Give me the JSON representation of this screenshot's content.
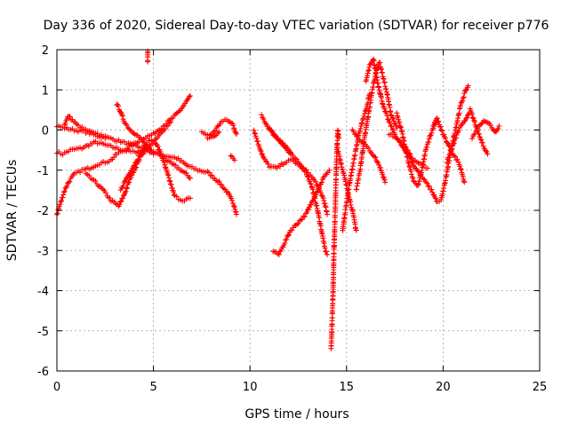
{
  "chart_data": {
    "type": "scatter",
    "title": "Day 336 of 2020, Sidereal Day-to-day VTEC variation (SDTVAR) for receiver p776",
    "xlabel": "GPS time / hours",
    "ylabel": "SDTVAR / TECUs",
    "xlim": [
      0,
      25
    ],
    "ylim": [
      -6,
      2
    ],
    "xticks": [
      0,
      5,
      10,
      15,
      20,
      25
    ],
    "yticks": [
      -6,
      -5,
      -4,
      -3,
      -2,
      -1,
      0,
      1,
      2
    ],
    "grid": true,
    "marker": "+",
    "series": [
      {
        "name": "SDTVAR",
        "color": "#ff0000",
        "tracks": [
          [
            [
              0.0,
              -0.55
            ],
            [
              0.3,
              -0.6
            ],
            [
              0.7,
              -0.5
            ],
            [
              1.3,
              -0.45
            ],
            [
              2.0,
              -0.3
            ],
            [
              2.7,
              -0.4
            ],
            [
              3.4,
              -0.5
            ],
            [
              4.0,
              -0.55
            ],
            [
              4.6,
              -0.5
            ],
            [
              5.2,
              -0.6
            ],
            [
              5.7,
              -0.65
            ],
            [
              6.2,
              -0.7
            ],
            [
              6.8,
              -0.9
            ],
            [
              7.3,
              -1.0
            ],
            [
              7.8,
              -1.05
            ],
            [
              8.4,
              -1.3
            ],
            [
              8.9,
              -1.6
            ],
            [
              9.2,
              -1.9
            ],
            [
              9.3,
              -2.1
            ]
          ],
          [
            [
              0.0,
              0.1
            ],
            [
              0.4,
              0.05
            ],
            [
              0.9,
              0.0
            ],
            [
              1.5,
              -0.05
            ],
            [
              2.1,
              -0.15
            ],
            [
              2.7,
              -0.2
            ],
            [
              3.4,
              -0.3
            ],
            [
              4.1,
              -0.4
            ],
            [
              4.8,
              -0.5
            ],
            [
              5.3,
              -0.6
            ],
            [
              5.8,
              -0.8
            ],
            [
              6.3,
              -0.95
            ],
            [
              6.7,
              -1.1
            ],
            [
              6.9,
              -1.2
            ]
          ],
          [
            [
              0.0,
              -2.1
            ],
            [
              0.2,
              -1.8
            ],
            [
              0.4,
              -1.5
            ],
            [
              0.6,
              -1.3
            ],
            [
              0.9,
              -1.1
            ],
            [
              1.3,
              -1.0
            ],
            [
              1.7,
              -0.95
            ],
            [
              2.1,
              -0.85
            ],
            [
              2.5,
              -0.8
            ],
            [
              2.8,
              -0.75
            ],
            [
              3.1,
              -0.6
            ],
            [
              3.5,
              -0.5
            ],
            [
              4.0,
              -0.35
            ],
            [
              4.5,
              -0.2
            ],
            [
              5.0,
              -0.1
            ],
            [
              5.5,
              0.1
            ],
            [
              6.0,
              0.3
            ],
            [
              6.4,
              0.5
            ],
            [
              6.7,
              0.7
            ],
            [
              6.9,
              0.85
            ]
          ],
          [
            [
              1.5,
              -1.1
            ],
            [
              2.0,
              -1.3
            ],
            [
              2.4,
              -1.5
            ],
            [
              2.8,
              -1.75
            ],
            [
              3.2,
              -1.9
            ],
            [
              3.5,
              -1.6
            ],
            [
              3.8,
              -1.2
            ],
            [
              4.1,
              -0.9
            ],
            [
              4.4,
              -0.6
            ],
            [
              4.8,
              -0.4
            ],
            [
              5.2,
              -0.2
            ],
            [
              5.6,
              0.05
            ],
            [
              5.9,
              0.2
            ]
          ],
          [
            [
              0.4,
              0.15
            ],
            [
              0.6,
              0.35
            ],
            [
              0.8,
              0.25
            ],
            [
              1.1,
              0.1
            ],
            [
              1.5,
              0.0
            ],
            [
              2.0,
              -0.1
            ],
            [
              2.5,
              -0.15
            ]
          ],
          [
            [
              3.1,
              0.65
            ],
            [
              3.3,
              0.45
            ],
            [
              3.5,
              0.2
            ],
            [
              3.8,
              0.0
            ],
            [
              4.1,
              -0.1
            ],
            [
              4.4,
              -0.25
            ],
            [
              4.7,
              -0.45
            ],
            [
              5.0,
              -0.6
            ]
          ],
          [
            [
              3.3,
              -1.5
            ],
            [
              3.6,
              -1.2
            ],
            [
              3.9,
              -0.95
            ],
            [
              4.2,
              -0.7
            ],
            [
              4.5,
              -0.45
            ],
            [
              4.8,
              -0.25
            ],
            [
              5.1,
              -0.3
            ],
            [
              5.4,
              -0.6
            ],
            [
              5.8,
              -1.2
            ],
            [
              6.1,
              -1.65
            ],
            [
              6.5,
              -1.75
            ],
            [
              6.9,
              -1.7
            ]
          ],
          [
            [
              4.7,
              1.95
            ],
            [
              4.7,
              1.7
            ]
          ],
          [
            [
              7.5,
              -0.05
            ],
            [
              7.9,
              -0.15
            ],
            [
              8.2,
              0.0
            ],
            [
              8.5,
              0.2
            ],
            [
              8.8,
              0.25
            ],
            [
              9.1,
              0.15
            ],
            [
              9.3,
              -0.1
            ]
          ],
          [
            [
              9.0,
              -0.65
            ],
            [
              9.2,
              -0.75
            ]
          ],
          [
            [
              7.8,
              -0.2
            ],
            [
              8.1,
              -0.15
            ],
            [
              8.4,
              -0.05
            ]
          ],
          [
            [
              10.2,
              0.0
            ],
            [
              10.4,
              -0.3
            ],
            [
              10.7,
              -0.7
            ],
            [
              11.0,
              -0.9
            ],
            [
              11.4,
              -0.95
            ],
            [
              11.8,
              -0.8
            ],
            [
              12.2,
              -0.75
            ],
            [
              12.6,
              -0.9
            ],
            [
              13.0,
              -1.05
            ],
            [
              13.4,
              -1.3
            ],
            [
              13.8,
              -1.7
            ],
            [
              14.0,
              -2.1
            ]
          ],
          [
            [
              10.6,
              0.35
            ],
            [
              10.9,
              0.1
            ],
            [
              11.2,
              -0.1
            ],
            [
              11.6,
              -0.3
            ],
            [
              12.0,
              -0.55
            ],
            [
              12.5,
              -0.8
            ],
            [
              12.9,
              -1.05
            ],
            [
              13.2,
              -1.4
            ],
            [
              13.5,
              -2.0
            ],
            [
              13.7,
              -2.5
            ],
            [
              13.9,
              -3.0
            ],
            [
              14.0,
              -3.1
            ]
          ],
          [
            [
              11.2,
              -3.0
            ],
            [
              11.5,
              -3.1
            ],
            [
              11.8,
              -2.8
            ],
            [
              12.1,
              -2.5
            ],
            [
              12.5,
              -2.3
            ],
            [
              12.9,
              -2.1
            ],
            [
              13.2,
              -1.8
            ],
            [
              13.5,
              -1.5
            ],
            [
              13.8,
              -1.2
            ],
            [
              14.1,
              -1.0
            ]
          ],
          [
            [
              11.0,
              0.05
            ],
            [
              11.3,
              -0.15
            ],
            [
              11.7,
              -0.35
            ],
            [
              12.1,
              -0.55
            ]
          ],
          [
            [
              14.2,
              -5.45
            ],
            [
              14.25,
              -4.8
            ],
            [
              14.3,
              -4.0
            ],
            [
              14.35,
              -3.0
            ],
            [
              14.4,
              -2.2
            ],
            [
              14.45,
              -1.3
            ],
            [
              14.5,
              -0.5
            ],
            [
              14.55,
              0.0
            ],
            [
              14.6,
              -0.2
            ]
          ],
          [
            [
              14.5,
              -0.4
            ],
            [
              14.7,
              -0.8
            ],
            [
              14.9,
              -1.2
            ],
            [
              15.1,
              -1.6
            ],
            [
              15.3,
              -2.0
            ],
            [
              15.5,
              -2.5
            ]
          ],
          [
            [
              14.8,
              -2.5
            ],
            [
              15.0,
              -1.8
            ],
            [
              15.2,
              -1.2
            ],
            [
              15.4,
              -0.7
            ],
            [
              15.6,
              -0.2
            ],
            [
              15.8,
              0.2
            ],
            [
              16.0,
              0.5
            ],
            [
              16.2,
              0.9
            ]
          ],
          [
            [
              15.5,
              -1.5
            ],
            [
              15.7,
              -1.0
            ],
            [
              15.9,
              -0.3
            ],
            [
              16.1,
              0.3
            ],
            [
              16.3,
              0.9
            ],
            [
              16.5,
              1.4
            ],
            [
              16.7,
              1.7
            ],
            [
              16.9,
              1.3
            ],
            [
              17.1,
              0.9
            ],
            [
              17.3,
              0.4
            ],
            [
              17.6,
              0.05
            ]
          ],
          [
            [
              16.0,
              1.2
            ],
            [
              16.2,
              1.6
            ],
            [
              16.4,
              1.75
            ],
            [
              16.6,
              1.2
            ],
            [
              16.9,
              0.6
            ],
            [
              17.2,
              0.2
            ],
            [
              17.6,
              -0.2
            ],
            [
              18.0,
              -0.5
            ],
            [
              18.4,
              -0.7
            ],
            [
              18.8,
              -0.85
            ],
            [
              19.2,
              -0.95
            ]
          ],
          [
            [
              17.2,
              -0.1
            ],
            [
              17.6,
              -0.2
            ],
            [
              18.0,
              -0.4
            ],
            [
              18.3,
              -0.6
            ]
          ],
          [
            [
              17.6,
              0.4
            ],
            [
              17.9,
              -0.1
            ],
            [
              18.1,
              -0.6
            ],
            [
              18.3,
              -1.0
            ],
            [
              18.5,
              -1.3
            ],
            [
              18.7,
              -1.4
            ],
            [
              18.9,
              -1.0
            ],
            [
              19.1,
              -0.5
            ],
            [
              19.4,
              -0.05
            ],
            [
              19.6,
              0.2
            ]
          ],
          [
            [
              18.2,
              -0.6
            ],
            [
              18.5,
              -0.9
            ],
            [
              18.8,
              -1.1
            ],
            [
              19.1,
              -1.3
            ],
            [
              19.4,
              -1.5
            ],
            [
              19.7,
              -1.8
            ],
            [
              19.9,
              -1.75
            ],
            [
              20.1,
              -1.3
            ],
            [
              20.3,
              -0.8
            ],
            [
              20.5,
              -0.3
            ],
            [
              20.7,
              0.15
            ],
            [
              20.9,
              0.6
            ],
            [
              21.1,
              0.9
            ],
            [
              21.3,
              1.1
            ]
          ],
          [
            [
              19.5,
              0.1
            ],
            [
              19.7,
              0.3
            ],
            [
              19.9,
              0.0
            ],
            [
              20.2,
              -0.3
            ],
            [
              20.5,
              -0.6
            ],
            [
              20.8,
              -0.8
            ],
            [
              21.0,
              -1.1
            ],
            [
              21.1,
              -1.3
            ]
          ],
          [
            [
              20.2,
              -0.8
            ],
            [
              20.5,
              -0.4
            ],
            [
              20.8,
              0.0
            ],
            [
              21.1,
              0.2
            ],
            [
              21.4,
              0.5
            ],
            [
              21.7,
              0.1
            ],
            [
              22.0,
              -0.3
            ],
            [
              22.3,
              -0.6
            ]
          ],
          [
            [
              21.5,
              -0.2
            ],
            [
              21.8,
              0.05
            ],
            [
              22.1,
              0.25
            ],
            [
              22.4,
              0.15
            ],
            [
              22.7,
              -0.05
            ],
            [
              22.9,
              0.1
            ]
          ],
          [
            [
              15.3,
              0.0
            ],
            [
              15.6,
              -0.2
            ],
            [
              15.9,
              -0.35
            ],
            [
              16.2,
              -0.5
            ],
            [
              16.5,
              -0.7
            ],
            [
              16.8,
              -1.0
            ],
            [
              17.0,
              -1.3
            ]
          ]
        ]
      }
    ]
  }
}
